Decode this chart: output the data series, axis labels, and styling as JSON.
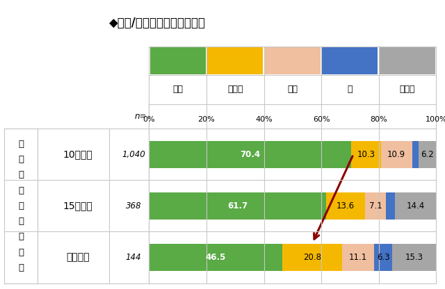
{
  "title": "◆通勤/通学時の主な交通手段",
  "categories": [
    "10分以内",
    "15分以内",
    "それ以上"
  ],
  "n_values": [
    "1,040",
    "368",
    "144"
  ],
  "segments": {
    "電車": [
      70.4,
      61.7,
      46.5
    ],
    "自転車": [
      10.3,
      13.6,
      20.8
    ],
    "徒歩": [
      10.9,
      7.1,
      11.1
    ],
    "車": [
      2.2,
      3.2,
      6.3
    ],
    "その他": [
      6.2,
      14.4,
      15.3
    ]
  },
  "colors": {
    "電車": "#5aaa46",
    "自転車": "#f5b800",
    "徒歩": "#f0bfa0",
    "車": "#4472c4",
    "その他": "#a6a6a6"
  },
  "labels_shown": {
    "電車": [
      true,
      true,
      true
    ],
    "自転車": [
      true,
      true,
      true
    ],
    "徒歩": [
      true,
      true,
      true
    ],
    "車": [
      false,
      false,
      true
    ],
    "その他": [
      true,
      true,
      true
    ]
  },
  "group_label_chars": [
    "自",
    "宅",
    "ー",
    "駅",
    "の",
    "徒",
    "歩",
    "時",
    "間"
  ],
  "background_color": "#ffffff",
  "grid_color": "#c8c8c8",
  "title_fontsize": 12,
  "bar_label_fontsize": 8.5,
  "legend_label_fontsize": 9,
  "axis_tick_fontsize": 8,
  "row_label_fontsize": 10,
  "n_label_fontsize": 8.5
}
